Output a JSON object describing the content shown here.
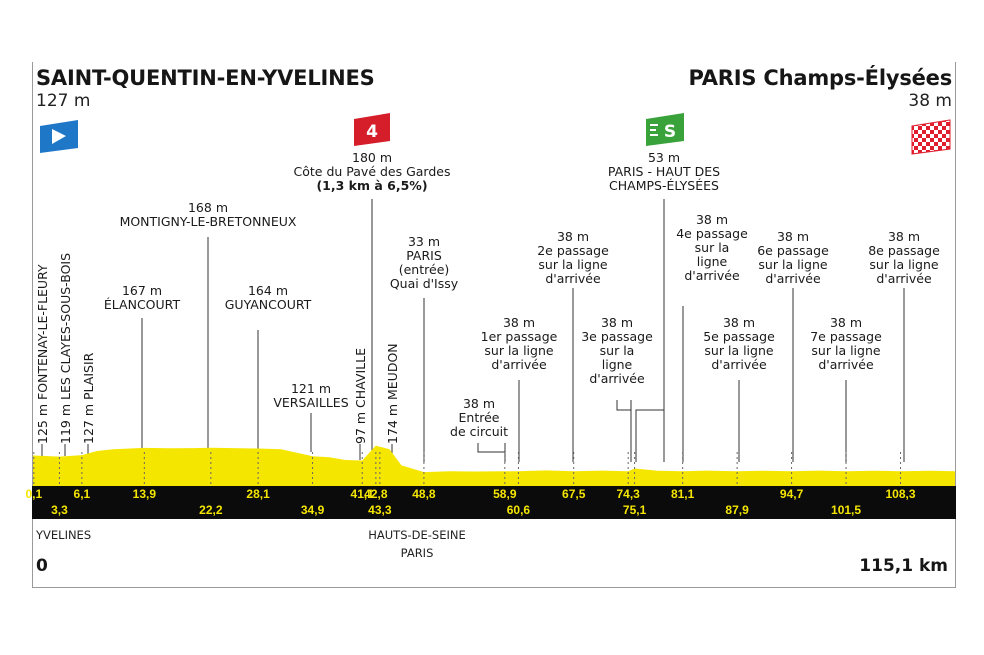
{
  "start": {
    "name": "SAINT-QUENTIN-EN-YVELINES",
    "altitude": "127 m"
  },
  "finish": {
    "name": "PARIS Champs-Élysées",
    "altitude": "38 m"
  },
  "total_distance": "115,1 km",
  "zero": "0",
  "regions": {
    "left": "YVELINES",
    "middle": "HAUTS-DE-SEINE",
    "middle2": "PARIS"
  },
  "climb_category": "4",
  "sprint_label": "S",
  "colors": {
    "profile": "#f5e600",
    "band": "#0b0b0b",
    "start_flag": "#1f77c8",
    "climb": "#d61e2b",
    "sprint": "#3aa23a",
    "finish_flag": "#e01e2e"
  },
  "icons": {
    "start": "start-flag-icon",
    "climb": "climb-cat4-icon",
    "sprint": "sprint-icon",
    "finish": "checkered-flag-icon"
  },
  "waypoints": [
    {
      "alt": "125 m",
      "name": "FONTENAY-LE-FLEURY"
    },
    {
      "alt": "119 m",
      "name": "LES CLAYES-SOUS-BOIS"
    },
    {
      "alt": "127 m",
      "name": "PLAISIR"
    },
    {
      "alt": "167 m",
      "name": "ÉLANCOURT"
    },
    {
      "alt": "168 m",
      "name": "MONTIGNY-LE-BRETONNEUX"
    },
    {
      "alt": "164 m",
      "name": "GUYANCOURT"
    },
    {
      "alt": "121 m",
      "name": "VERSAILLES"
    },
    {
      "alt": "97 m",
      "name": "CHAVILLE"
    },
    {
      "alt": "180 m",
      "name": "Côte du Pavé des Gardes",
      "detail": "(1,3 km à 6,5%)"
    },
    {
      "alt": "174 m",
      "name": "MEUDON"
    },
    {
      "alt": "33 m",
      "name": "PARIS",
      "line2": "(entrée)",
      "line3": "Quai d'Issy"
    },
    {
      "alt": "38 m",
      "line1": "Entrée",
      "line2": "de circuit"
    },
    {
      "alt": "38 m",
      "line1": "1er passage",
      "line2": "sur la ligne",
      "line3": "d'arrivée"
    },
    {
      "alt": "38 m",
      "line1": "2e passage",
      "line2": "sur la ligne",
      "line3": "d'arrivée"
    },
    {
      "alt": "38 m",
      "line1": "3e passage",
      "line2": "sur la",
      "line3": "ligne",
      "line4": "d'arrivée"
    },
    {
      "alt": "53 m",
      "line1": "PARIS - HAUT DES",
      "line2": "CHAMPS-ÉLYSÉES"
    },
    {
      "alt": "38 m",
      "line1": "4e passage",
      "line2": "sur la",
      "line3": "ligne",
      "line4": "d'arrivée"
    },
    {
      "alt": "38 m",
      "line1": "5e passage",
      "line2": "sur la ligne",
      "line3": "d'arrivée"
    },
    {
      "alt": "38 m",
      "line1": "6e passage",
      "line2": "sur la ligne",
      "line3": "d'arrivée"
    },
    {
      "alt": "38 m",
      "line1": "7e passage",
      "line2": "sur la ligne",
      "line3": "d'arrivée"
    },
    {
      "alt": "38 m",
      "line1": "8e passage",
      "line2": "sur la ligne",
      "line3": "d'arrivée"
    }
  ],
  "chart_data": {
    "type": "area",
    "x_unit": "km",
    "y_unit": "m",
    "xlim": [
      0,
      115.1
    ],
    "km_markers_top": [
      "0,1",
      "6,1",
      "13,9",
      "28,1",
      "41,1",
      "42,8",
      "48,8",
      "58,9",
      "67,5",
      "74,3",
      "81,1",
      "94,7",
      "108,3"
    ],
    "km_markers_bottom": [
      "3,3",
      "22,2",
      "34,9",
      "43,3",
      "60,6",
      "75,1",
      "87,9",
      "101,5"
    ],
    "km_top_values": [
      0.1,
      6.1,
      13.9,
      28.1,
      41.1,
      42.8,
      48.8,
      58.9,
      67.5,
      74.3,
      81.1,
      94.7,
      108.3
    ],
    "km_bottom_values": [
      3.3,
      22.2,
      34.9,
      43.3,
      60.6,
      75.1,
      87.9,
      101.5
    ],
    "x": [
      0,
      0.1,
      3.3,
      6.1,
      8,
      10,
      13.9,
      17,
      20,
      22.2,
      25,
      28.1,
      31,
      34.9,
      37,
      39,
      41.1,
      42.8,
      43.3,
      44.5,
      46,
      48.8,
      52,
      55,
      58.9,
      60.6,
      64,
      67.5,
      71,
      74.3,
      75.1,
      78,
      81.1,
      84,
      87.9,
      91,
      94.7,
      98,
      101.5,
      105,
      108.3,
      112,
      115.1
    ],
    "y": [
      127,
      125,
      119,
      127,
      150,
      160,
      167,
      165,
      166,
      168,
      166,
      164,
      160,
      121,
      115,
      100,
      97,
      180,
      174,
      160,
      70,
      33,
      38,
      36,
      38,
      38,
      42,
      38,
      41,
      38,
      53,
      40,
      38,
      41,
      38,
      40,
      38,
      41,
      38,
      40,
      38,
      40,
      38
    ]
  }
}
